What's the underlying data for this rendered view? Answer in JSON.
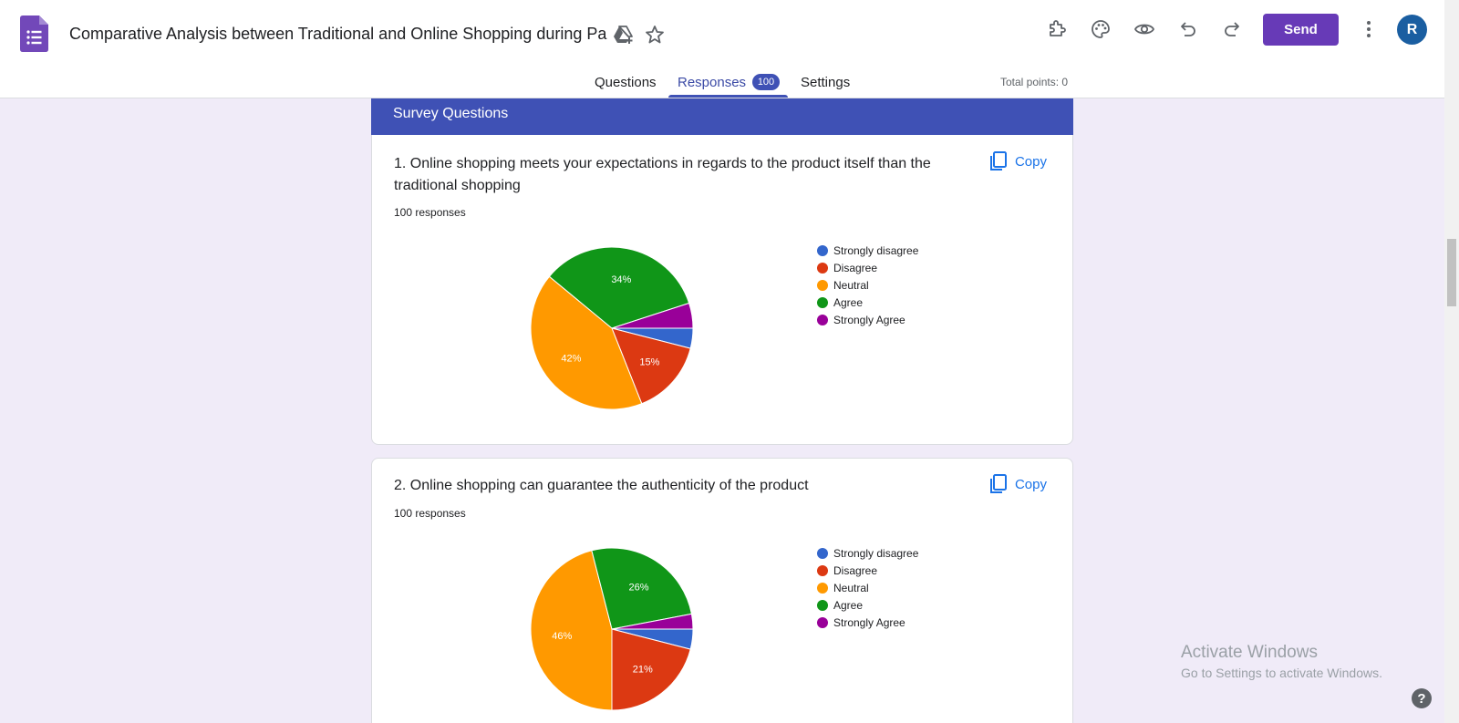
{
  "header": {
    "title": "Comparative Analysis between Traditional and Online Shopping during Pa",
    "send_label": "Send",
    "avatar_initial": "R",
    "icons": [
      "addon-icon",
      "palette-icon",
      "preview-icon",
      "undo-icon",
      "redo-icon",
      "more-vert-icon"
    ]
  },
  "tabs": {
    "questions": "Questions",
    "responses": "Responses",
    "responses_count": "100",
    "settings": "Settings",
    "total_points": "Total points: 0"
  },
  "section": {
    "title": "Survey Questions"
  },
  "copy_label": "Copy",
  "colors": {
    "accent": "#673ab7",
    "tab_active": "#3f51b5",
    "strongly_disagree": "#3366cc",
    "disagree": "#dc3912",
    "neutral": "#ff9900",
    "agree": "#109618",
    "strongly_agree": "#990099"
  },
  "questions": [
    {
      "title": "1. Online shopping meets your expectations in regards to the product itself than the traditional shopping",
      "responses": "100 responses"
    },
    {
      "title": "2. Online shopping can guarantee the authenticity of the product",
      "responses": "100 responses"
    }
  ],
  "chart_data": [
    {
      "type": "pie",
      "categories": [
        "Strongly disagree",
        "Disagree",
        "Neutral",
        "Agree",
        "Strongly Agree"
      ],
      "values": [
        4,
        15,
        42,
        34,
        5
      ],
      "labels_shown": [
        "",
        "15%",
        "42%",
        "34%",
        ""
      ],
      "legend_position": "right"
    },
    {
      "type": "pie",
      "categories": [
        "Strongly disagree",
        "Disagree",
        "Neutral",
        "Agree",
        "Strongly Agree"
      ],
      "values": [
        4,
        21,
        46,
        26,
        3
      ],
      "labels_shown": [
        "",
        "21%",
        "46%",
        "26%",
        ""
      ],
      "legend_position": "right"
    }
  ],
  "watermark": {
    "title": "Activate Windows",
    "subtitle": "Go to Settings to activate Windows."
  },
  "help": "?"
}
